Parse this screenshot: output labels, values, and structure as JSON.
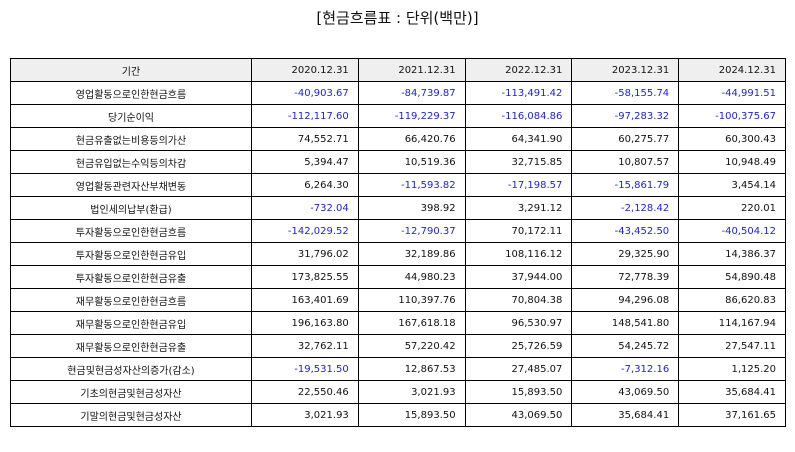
{
  "title": "[현금흐름표 : 단위(백만)]",
  "colors": {
    "negative": "#1f24c8",
    "header_bg": "#efefef"
  },
  "table": {
    "label_header": "기간",
    "periods": [
      "2020.12.31",
      "2021.12.31",
      "2022.12.31",
      "2023.12.31",
      "2024.12.31"
    ],
    "rows": [
      {
        "label": "영업활동으로인한현금흐름",
        "values": [
          "-40,903.67",
          "-84,739.87",
          "-113,491.42",
          "-58,155.74",
          "-44,991.51"
        ]
      },
      {
        "label": "당기순이익",
        "values": [
          "-112,117.60",
          "-119,229.37",
          "-116,084.86",
          "-97,283.32",
          "-100,375.67"
        ]
      },
      {
        "label": "현금유출없는비용등의가산",
        "values": [
          "74,552.71",
          "66,420.76",
          "64,341.90",
          "60,275.77",
          "60,300.43"
        ]
      },
      {
        "label": "현금유입없는수익등의차감",
        "values": [
          "5,394.47",
          "10,519.36",
          "32,715.85",
          "10,807.57",
          "10,948.49"
        ]
      },
      {
        "label": "영업활동관련자산부채변동",
        "values": [
          "6,264.30",
          "-11,593.82",
          "-17,198.57",
          "-15,861.79",
          "3,454.14"
        ]
      },
      {
        "label": "법인세의납부(환급)",
        "values": [
          "-732.04",
          "398.92",
          "3,291.12",
          "-2,128.42",
          "220.01"
        ]
      },
      {
        "label": "투자활동으로인한현금흐름",
        "values": [
          "-142,029.52",
          "-12,790.37",
          "70,172.11",
          "-43,452.50",
          "-40,504.12"
        ]
      },
      {
        "label": "투자활동으로인한현금유입",
        "values": [
          "31,796.02",
          "32,189.86",
          "108,116.12",
          "29,325.90",
          "14,386.37"
        ]
      },
      {
        "label": "투자활동으로인한현금유출",
        "values": [
          "173,825.55",
          "44,980.23",
          "37,944.00",
          "72,778.39",
          "54,890.48"
        ]
      },
      {
        "label": "재무활동으로인한현금흐름",
        "values": [
          "163,401.69",
          "110,397.76",
          "70,804.38",
          "94,296.08",
          "86,620.83"
        ]
      },
      {
        "label": "재무활동으로인한현금유입",
        "values": [
          "196,163.80",
          "167,618.18",
          "96,530.97",
          "148,541.80",
          "114,167.94"
        ]
      },
      {
        "label": "재무활동으로인한현금유출",
        "values": [
          "32,762.11",
          "57,220.42",
          "25,726.59",
          "54,245.72",
          "27,547.11"
        ]
      },
      {
        "label": "현금및현금성자산의증가(감소)",
        "values": [
          "-19,531.50",
          "12,867.53",
          "27,485.07",
          "-7,312.16",
          "1,125.20"
        ]
      },
      {
        "label": "기초의현금및현금성자산",
        "values": [
          "22,550.46",
          "3,021.93",
          "15,893.50",
          "43,069.50",
          "35,684.41"
        ]
      },
      {
        "label": "기말의현금및현금성자산",
        "values": [
          "3,021.93",
          "15,893.50",
          "43,069.50",
          "35,684.41",
          "37,161.65"
        ]
      }
    ]
  }
}
